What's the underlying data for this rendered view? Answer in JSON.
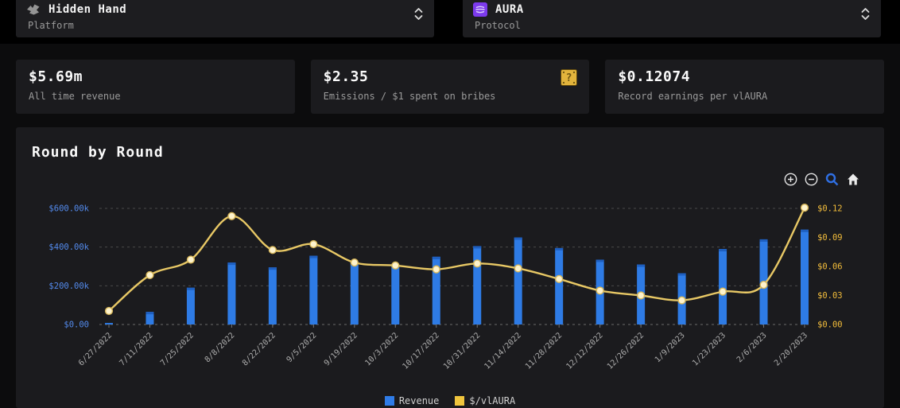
{
  "selectors": {
    "platform": {
      "value": "Hidden Hand",
      "label": "Platform"
    },
    "protocol": {
      "value": "AURA",
      "label": "Protocol"
    }
  },
  "stats": [
    {
      "value": "$5.69m",
      "label": "All time revenue"
    },
    {
      "value": "$2.35",
      "label": "Emissions / $1 spent on bribes"
    },
    {
      "value": "$0.12074",
      "label": "Record earnings per vlAURA"
    }
  ],
  "chart": {
    "title": "Round by Round"
  },
  "toolbar_icons": [
    "zoom-in",
    "zoom-out",
    "box-zoom",
    "home"
  ],
  "chart_data": {
    "type": "bar+line",
    "title": "Round by Round",
    "categories": [
      "6/27/2022",
      "7/11/2022",
      "7/25/2022",
      "8/8/2022",
      "8/22/2022",
      "9/5/2022",
      "9/19/2022",
      "10/3/2022",
      "10/17/2022",
      "10/31/2022",
      "11/14/2022",
      "11/28/2022",
      "12/12/2022",
      "12/26/2022",
      "1/9/2023",
      "1/23/2023",
      "2/6/2023",
      "2/20/2023"
    ],
    "series": [
      {
        "name": "Revenue",
        "type": "bar",
        "axis": "left",
        "color": "#2e7be5",
        "cap_color": "#1e5fc0",
        "legend_color": "#2f7ce8",
        "values": [
          8000,
          65000,
          190000,
          320000,
          295000,
          355000,
          320000,
          305000,
          350000,
          405000,
          450000,
          395000,
          335000,
          310000,
          265000,
          390000,
          440000,
          490000
        ]
      },
      {
        "name": "$/vlAURA",
        "type": "line",
        "axis": "right",
        "color": "#e8c865",
        "marker_fill": "#fdf3cd",
        "marker_stroke": "#d8b75a",
        "legend_color": "#f0c53d",
        "values": [
          0.014,
          0.051,
          0.067,
          0.112,
          0.077,
          0.083,
          0.064,
          0.061,
          0.057,
          0.063,
          0.058,
          0.047,
          0.035,
          0.03,
          0.025,
          0.034,
          0.041,
          0.1207
        ]
      }
    ],
    "left_axis": {
      "color": "#538aec",
      "range": [
        0,
        600000
      ],
      "ticks": [
        {
          "label": "$0.00",
          "value": 0
        },
        {
          "label": "$200.00k",
          "value": 200000
        },
        {
          "label": "$400.00k",
          "value": 400000
        },
        {
          "label": "$600.00k",
          "value": 600000
        }
      ]
    },
    "right_axis": {
      "color": "#f2bc3a",
      "range": [
        0,
        0.12
      ],
      "ticks": [
        {
          "label": "$0.00",
          "value": 0
        },
        {
          "label": "$0.03",
          "value": 0.03
        },
        {
          "label": "$0.06",
          "value": 0.06
        },
        {
          "label": "$0.09",
          "value": 0.09
        },
        {
          "label": "$0.12",
          "value": 0.12
        }
      ]
    },
    "x_axis": {
      "label_color": "#ababab",
      "label_angle": -45
    },
    "grid": {
      "horizontal": true,
      "style": "dashed",
      "color": "#4a4a4a",
      "zero_color": "#6b6b6b"
    },
    "legend_position": "bottom-center"
  }
}
